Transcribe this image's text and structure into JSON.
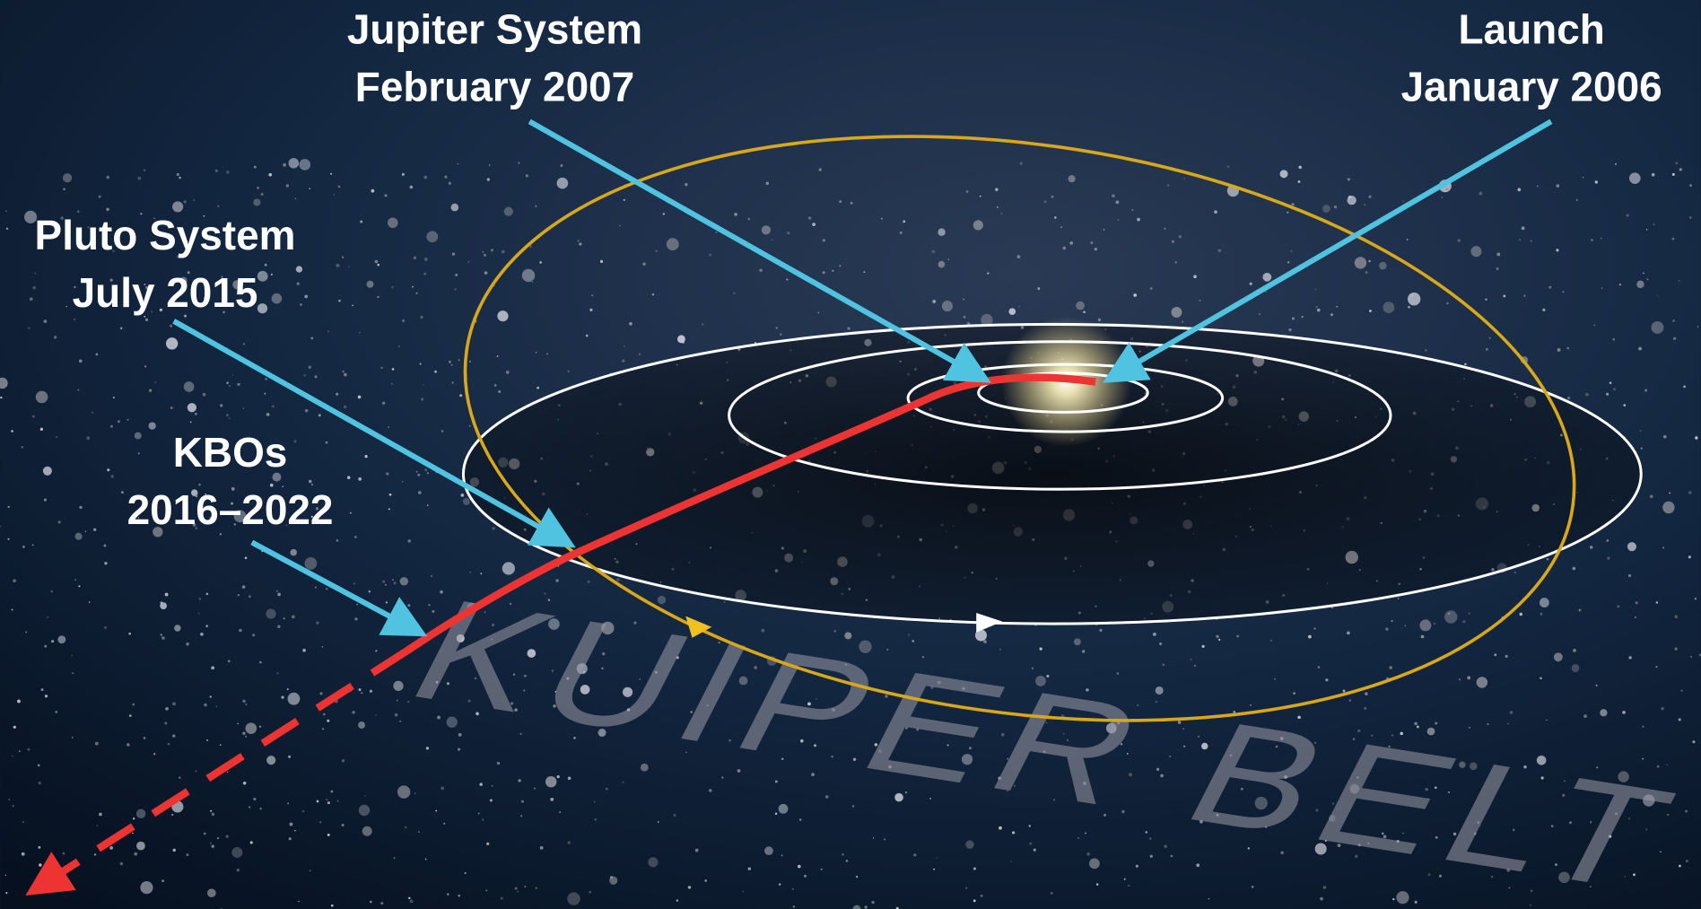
{
  "labels": [
    {
      "title": "Jupiter System",
      "date": "February 2007"
    },
    {
      "title": "Launch",
      "date": "January 2006"
    },
    {
      "title": "Pluto System",
      "date": "July 2015"
    },
    {
      "title": "KBOs",
      "date": "2016–2022"
    }
  ],
  "background_text": "KUIPER BELT"
}
